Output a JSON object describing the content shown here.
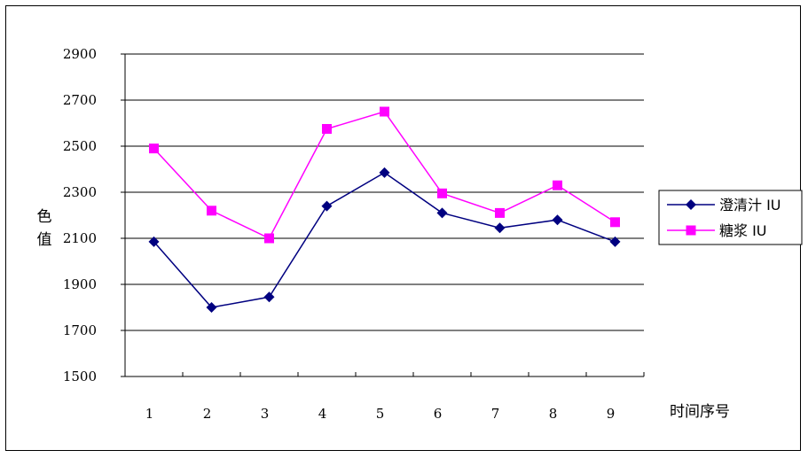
{
  "chart_data": {
    "type": "line",
    "xlabel": "时间序号",
    "ylabel": "色值",
    "categories": [
      "1",
      "2",
      "3",
      "4",
      "5",
      "6",
      "7",
      "8",
      "9"
    ],
    "ylim": [
      1500,
      2900
    ],
    "yticks": [
      1500,
      1700,
      1900,
      2100,
      2300,
      2500,
      2700,
      2900
    ],
    "grid": true,
    "legend_position": "right",
    "series": [
      {
        "name": "澄清汁 IU",
        "marker": "diamond",
        "color": "#000080",
        "values": [
          2085,
          1800,
          1845,
          2240,
          2385,
          2210,
          2145,
          2180,
          2085
        ]
      },
      {
        "name": "糖浆 IU",
        "marker": "square",
        "color": "#ff00ff",
        "values": [
          2490,
          2220,
          2100,
          2575,
          2650,
          2295,
          2210,
          2330,
          2170
        ]
      }
    ]
  }
}
